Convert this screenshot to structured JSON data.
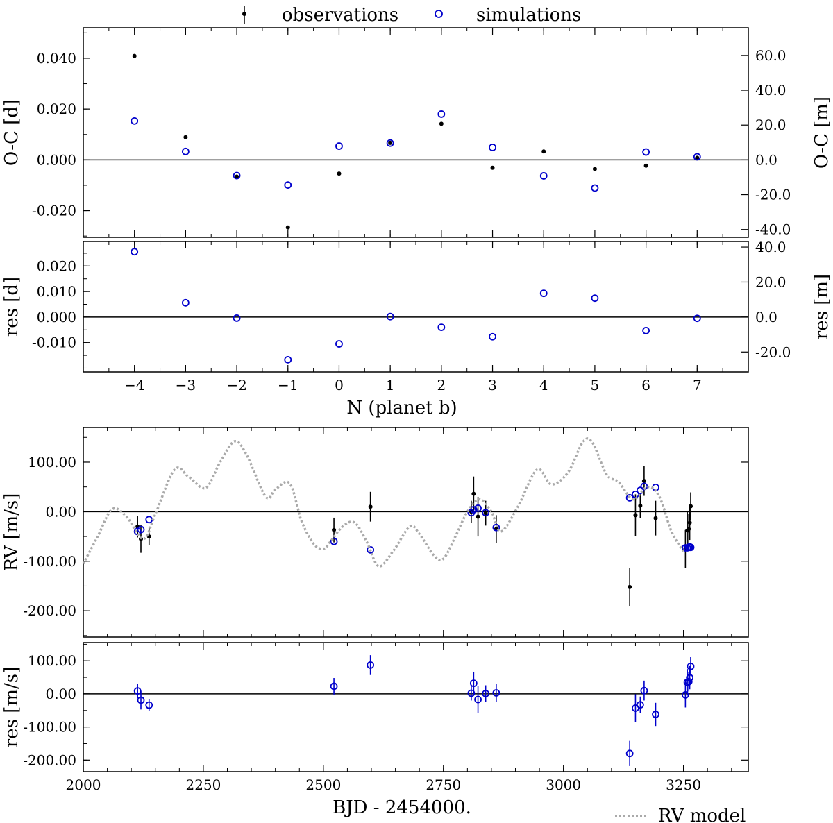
{
  "legend": {
    "observations_label": "observations",
    "simulations_label": "simulations",
    "rv_model_label": "RV model"
  },
  "colors": {
    "observations": "#000000",
    "simulations": "#0000cc",
    "rv_model": "#aaaaaa",
    "axes": "#000000"
  },
  "chart_data": [
    {
      "id": "oc_panel",
      "type": "scatter",
      "ylabel": "O-C [d]",
      "ylabel_right": "O-C [m]",
      "xlim": [
        -5,
        8
      ],
      "ylim": [
        -0.0305,
        0.052
      ],
      "ylim_right": [
        -44.5,
        75.9
      ],
      "y_ticks": [
        0.04,
        0.02,
        0.0,
        -0.02
      ],
      "y_tick_labels": [
        "0.040",
        "0.020",
        "0.000",
        "-0.020"
      ],
      "y_right_ticks": [
        60,
        40,
        20,
        0,
        -20,
        -40
      ],
      "y_right_tick_labels": [
        "60.0",
        "40.0",
        "20.0",
        "0.0",
        "-20.0",
        "-40.0"
      ],
      "zero_line": true,
      "series": [
        {
          "name": "observations",
          "marker": "dot",
          "x": [
            -4,
            -3,
            -2,
            -1,
            0,
            1,
            2,
            3,
            4,
            5,
            6,
            7
          ],
          "y": [
            0.0409,
            0.0089,
            -0.0066,
            -0.0266,
            -0.0054,
            0.0067,
            0.0142,
            -0.0031,
            0.0033,
            -0.0036,
            -0.0023,
            0.0008
          ]
        },
        {
          "name": "simulations",
          "marker": "open-circle",
          "x": [
            -4,
            -3,
            -2,
            -1,
            0,
            1,
            2,
            3,
            4,
            5,
            6,
            7
          ],
          "y": [
            0.0153,
            0.0033,
            -0.0062,
            -0.0099,
            0.0054,
            0.0066,
            0.018,
            0.0049,
            -0.0063,
            -0.0111,
            0.0031,
            0.0012
          ]
        }
      ]
    },
    {
      "id": "oc_residual_panel",
      "type": "scatter",
      "ylabel": "res [d]",
      "ylabel_right": "res [m]",
      "xlabel": "N (planet b)",
      "xlim": [
        -5,
        8
      ],
      "ylim": [
        -0.0215,
        0.0296
      ],
      "ylim_right": [
        -31.4,
        43.2
      ],
      "x_ticks": [
        -4,
        -3,
        -2,
        -1,
        0,
        1,
        2,
        3,
        4,
        5,
        6,
        7
      ],
      "x_tick_labels": [
        "−4",
        "−3",
        "−2",
        "−1",
        "0",
        "1",
        "2",
        "3",
        "4",
        "5",
        "6",
        "7"
      ],
      "y_ticks": [
        0.02,
        0.01,
        0.0,
        -0.01
      ],
      "y_tick_labels": [
        "0.020",
        "0.010",
        "0.000",
        "-0.010"
      ],
      "y_right_ticks": [
        40,
        20,
        0,
        -20
      ],
      "y_right_tick_labels": [
        "40.0",
        "20.0",
        "0.0",
        "-20.0"
      ],
      "zero_line": true,
      "series": [
        {
          "name": "simulations",
          "marker": "open-circle",
          "x": [
            -4,
            -3,
            -2,
            -1,
            0,
            1,
            2,
            3,
            4,
            5,
            6,
            7
          ],
          "y": [
            0.0256,
            0.0056,
            -0.0004,
            -0.0167,
            -0.0105,
            0.0002,
            -0.004,
            -0.0077,
            0.0093,
            0.0074,
            -0.0053,
            -0.0005
          ]
        }
      ]
    },
    {
      "id": "rv_panel",
      "type": "scatter",
      "ylabel": "RV [m/s]",
      "xlim": [
        2000,
        3385
      ],
      "ylim": [
        -253,
        170
      ],
      "y_ticks": [
        100,
        0,
        -100,
        -200
      ],
      "y_tick_labels": [
        "100.00",
        "0.00",
        "-100.00",
        "-200.00"
      ],
      "zero_line": true,
      "series": [
        {
          "name": "observations",
          "marker": "dot-errorbar",
          "x": [
            2113,
            2120,
            2137,
            2522,
            2598,
            2808,
            2813,
            2822,
            2838,
            2860,
            3138,
            3150,
            3160,
            3168,
            3192,
            3254,
            3258,
            3261,
            3263,
            3265
          ],
          "y": [
            -30,
            -55,
            -50,
            -37,
            10,
            0,
            36,
            -10,
            -3,
            -35,
            -152,
            -7,
            12,
            62,
            -13,
            -75,
            -38,
            -35,
            -22,
            11
          ],
          "err": [
            22,
            28,
            18,
            25,
            30,
            22,
            35,
            40,
            25,
            28,
            38,
            42,
            25,
            30,
            35,
            38,
            40,
            30,
            35,
            28
          ]
        },
        {
          "name": "simulations",
          "marker": "open-circle",
          "x": [
            2113,
            2120,
            2137,
            2522,
            2598,
            2808,
            2813,
            2822,
            2838,
            2860,
            3138,
            3150,
            3160,
            3168,
            3192,
            3254,
            3258,
            3261,
            3263,
            3265
          ],
          "y": [
            -40,
            -36,
            -16,
            -60,
            -77,
            -2,
            4,
            7,
            -2,
            -32,
            28,
            35,
            43,
            51,
            49,
            -73,
            -73,
            -72,
            -71,
            -72
          ]
        },
        {
          "name": "RV model",
          "line": "dotted",
          "x": [
            2000,
            2030,
            2060,
            2090,
            2125,
            2150,
            2190,
            2220,
            2255,
            2285,
            2315,
            2340,
            2380,
            2400,
            2430,
            2455,
            2480,
            2500,
            2515,
            2540,
            2565,
            2590,
            2615,
            2645,
            2680,
            2700,
            2730,
            2750,
            2775,
            2800,
            2825,
            2850,
            2870,
            2905,
            2945,
            2975,
            3010,
            3040,
            3060,
            3090,
            3115,
            3145,
            3175,
            3200,
            3225,
            3250
          ],
          "y": [
            -105,
            -50,
            5,
            -10,
            -55,
            -5,
            85,
            70,
            48,
            100,
            142,
            115,
            30,
            45,
            57,
            -20,
            -65,
            -75,
            -60,
            -30,
            -22,
            -60,
            -110,
            -80,
            -30,
            -45,
            -88,
            -95,
            -50,
            0,
            25,
            0,
            -40,
            10,
            85,
            55,
            80,
            140,
            140,
            75,
            60,
            25,
            50,
            30,
            -40,
            -80
          ]
        }
      ]
    },
    {
      "id": "rv_residual_panel",
      "type": "scatter",
      "ylabel": "res [m/s]",
      "xlabel": "BJD - 2454000.",
      "xlim": [
        2000,
        3385
      ],
      "ylim": [
        -235,
        155
      ],
      "x_ticks": [
        2000,
        2250,
        2500,
        2750,
        3000,
        3250
      ],
      "x_tick_labels": [
        "2000",
        "2250",
        "2500",
        "2750",
        "3000",
        "3250"
      ],
      "y_ticks": [
        100,
        0,
        -100,
        -200
      ],
      "y_tick_labels": [
        "100.00",
        "0.00",
        "-100.00",
        "-200.00"
      ],
      "zero_line": true,
      "series": [
        {
          "name": "simulations",
          "marker": "open-circle-errorbar",
          "x": [
            2113,
            2120,
            2137,
            2522,
            2598,
            2808,
            2813,
            2822,
            2838,
            2860,
            3138,
            3150,
            3160,
            3168,
            3192,
            3254,
            3258,
            3261,
            3263,
            3265
          ],
          "y": [
            9,
            -19,
            -34,
            23,
            87,
            2,
            32,
            -17,
            1,
            3,
            -180,
            -43,
            -33,
            10,
            -62,
            -3,
            35,
            37,
            49,
            83
          ],
          "err": [
            22,
            28,
            18,
            25,
            30,
            22,
            35,
            40,
            25,
            28,
            38,
            42,
            25,
            30,
            35,
            38,
            40,
            30,
            35,
            28
          ]
        }
      ]
    }
  ]
}
